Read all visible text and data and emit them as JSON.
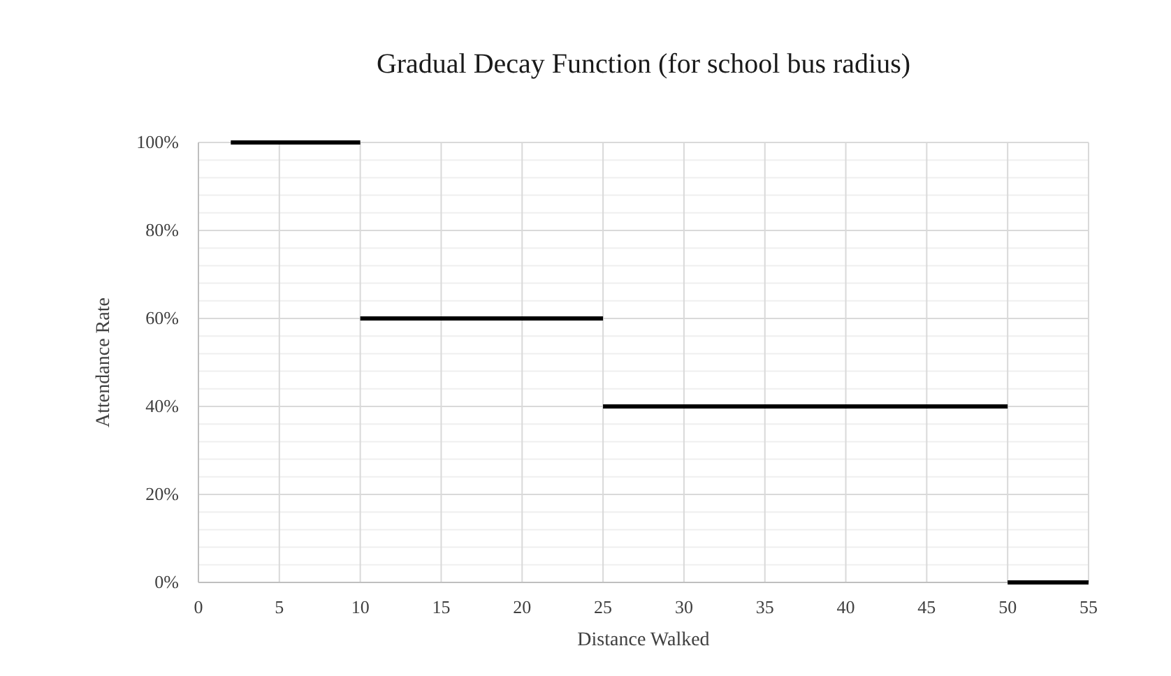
{
  "chart_data": {
    "type": "line",
    "title": "Gradual Decay Function (for school bus radius)",
    "xlabel": "Distance Walked",
    "ylabel": "Attendance Rate",
    "series": [
      {
        "color": "#000000",
        "x": [
          2,
          10
        ],
        "values": [
          100,
          100
        ]
      },
      {
        "color": "#000000",
        "x": [
          10,
          25
        ],
        "values": [
          60,
          60
        ]
      },
      {
        "color": "#000000",
        "x": [
          25,
          50
        ],
        "values": [
          40,
          40
        ]
      },
      {
        "color": "#000000",
        "x": [
          50,
          55
        ],
        "values": [
          0,
          0
        ]
      }
    ],
    "xlim": [
      0,
      55
    ],
    "xticks": [
      0,
      5,
      10,
      15,
      20,
      25,
      30,
      35,
      40,
      45,
      50,
      55
    ],
    "ylim": [
      0,
      100
    ],
    "yticks": [
      {
        "value": 0,
        "label": "0%"
      },
      {
        "value": 4,
        "label": null
      },
      {
        "value": 8,
        "label": null
      },
      {
        "value": 12,
        "label": null
      },
      {
        "value": 16,
        "label": null
      },
      {
        "value": 20,
        "label": "20%"
      },
      {
        "value": 24,
        "label": null
      },
      {
        "value": 28,
        "label": null
      },
      {
        "value": 32,
        "label": null
      },
      {
        "value": 36,
        "label": null
      },
      {
        "value": 40,
        "label": "40%"
      },
      {
        "value": 44,
        "label": null
      },
      {
        "value": 48,
        "label": null
      },
      {
        "value": 52,
        "label": null
      },
      {
        "value": 56,
        "label": null
      },
      {
        "value": 60,
        "label": "60%"
      },
      {
        "value": 64,
        "label": null
      },
      {
        "value": 68,
        "label": null
      },
      {
        "value": 72,
        "label": null
      },
      {
        "value": 76,
        "label": null
      },
      {
        "value": 80,
        "label": "80%"
      },
      {
        "value": 84,
        "label": null
      },
      {
        "value": 88,
        "label": null
      },
      {
        "value": 92,
        "label": null
      },
      {
        "value": 96,
        "label": null
      },
      {
        "value": 100,
        "label": "100%"
      }
    ],
    "grid": true,
    "marker": "none",
    "line_style": "solid"
  }
}
